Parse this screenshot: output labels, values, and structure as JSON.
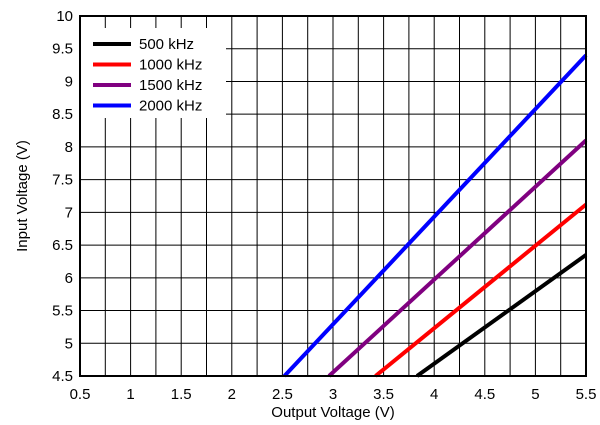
{
  "chart_data": {
    "type": "line",
    "xlabel": "Output Voltage (V)",
    "ylabel": "Input Voltage (V)",
    "xlim": [
      0.5,
      5.5
    ],
    "ylim": [
      4.5,
      10
    ],
    "x_ticks": [
      0.5,
      1,
      1.5,
      2,
      2.5,
      3,
      3.5,
      4,
      4.5,
      5,
      5.5
    ],
    "y_ticks": [
      4.5,
      5,
      5.5,
      6,
      6.5,
      7,
      7.5,
      8,
      8.5,
      9,
      9.5,
      10
    ],
    "x_tick_labels": [
      "0.5",
      "1",
      "1.5",
      "2",
      "2.5",
      "3",
      "3.5",
      "4",
      "4.5",
      "5",
      "5.5"
    ],
    "y_tick_labels": [
      "4.5",
      "5",
      "5.5",
      "6",
      "6.5",
      "7",
      "7.5",
      "8",
      "8.5",
      "9",
      "9.5",
      "10"
    ],
    "x_grid_step": 0.25,
    "y_grid_step": 0.5,
    "grid": true,
    "legend_position": "top-left",
    "series": [
      {
        "name": "500 kHz",
        "color": "#000000",
        "x": [
          3.83,
          5.5
        ],
        "y": [
          4.5,
          6.35
        ]
      },
      {
        "name": "1000 kHz",
        "color": "#ff0000",
        "x": [
          3.42,
          5.5
        ],
        "y": [
          4.5,
          7.12
        ]
      },
      {
        "name": "1500 kHz",
        "color": "#800080",
        "x": [
          2.96,
          5.5
        ],
        "y": [
          4.5,
          8.1
        ]
      },
      {
        "name": "2000 kHz",
        "color": "#0000ff",
        "x": [
          2.52,
          5.5
        ],
        "y": [
          4.5,
          9.4
        ]
      }
    ]
  }
}
